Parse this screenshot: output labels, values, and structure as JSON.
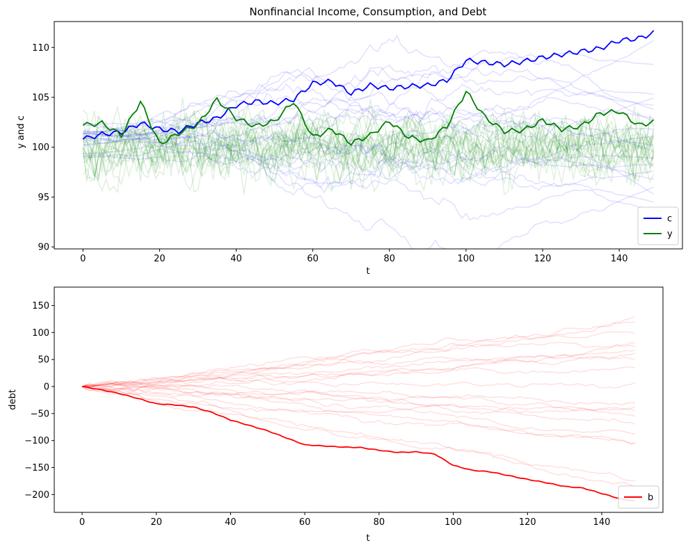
{
  "chart_data": [
    {
      "type": "line",
      "title": "Nonfinancial Income, Consumption, and Debt",
      "xlabel": "t",
      "ylabel": "y and c",
      "xlim": [
        -7.5,
        156.5
      ],
      "ylim": [
        89.8,
        112.6
      ],
      "xticks": [
        0,
        20,
        40,
        60,
        80,
        100,
        120,
        140
      ],
      "yticks": [
        90,
        95,
        100,
        105,
        110
      ],
      "grid": false,
      "legend": {
        "position": "lower-right",
        "entries": [
          {
            "label": "c",
            "color": "#0000ff"
          },
          {
            "label": "y",
            "color": "#008000"
          }
        ]
      },
      "background_paths": {
        "count_per_series": 20,
        "alpha": 0.12,
        "c_final_levels": [
          110.7,
          108.3,
          105.3,
          104.9,
          104.2,
          103.8,
          102.9,
          102.6,
          101.8,
          101.1,
          100.2,
          99.6,
          98.9,
          98.3,
          97.6,
          96.8,
          96.0,
          95.3,
          94.5,
          93.6
        ],
        "y_mean": 100
      },
      "series": [
        {
          "name": "c",
          "color": "#0000ff",
          "x_start": 0,
          "x_step": 5,
          "values": [
            100.8,
            101.3,
            101.5,
            102.4,
            101.8,
            101.6,
            102.4,
            102.9,
            104.2,
            104.6,
            104.4,
            104.8,
            106.4,
            106.6,
            105.4,
            106.2,
            105.9,
            106.1,
            106.2,
            106.7,
            108.7,
            108.5,
            108.3,
            108.6,
            109.0,
            109.3,
            109.6,
            109.9,
            110.7,
            110.9,
            111.6
          ]
        },
        {
          "name": "y",
          "color": "#008000",
          "x_start": 0,
          "x_step": 5,
          "values": [
            102.2,
            102.4,
            101.2,
            104.6,
            100.3,
            101.4,
            102.3,
            104.8,
            102.9,
            102.1,
            102.6,
            104.6,
            101.0,
            101.8,
            100.4,
            101.2,
            102.6,
            101.0,
            100.6,
            102.1,
            105.6,
            103.0,
            101.6,
            101.7,
            102.7,
            101.8,
            102.1,
            103.4,
            103.6,
            102.2,
            102.6
          ]
        }
      ]
    },
    {
      "type": "line",
      "title": "",
      "xlabel": "t",
      "ylabel": "debt",
      "xlim": [
        -7.5,
        156.5
      ],
      "ylim": [
        -233,
        184
      ],
      "xticks": [
        0,
        20,
        40,
        60,
        80,
        100,
        120,
        140
      ],
      "yticks": [
        150,
        100,
        50,
        0,
        -50,
        -100,
        -150,
        -200
      ],
      "grid": false,
      "legend": {
        "position": "lower-right",
        "entries": [
          {
            "label": "b",
            "color": "#ff0000"
          }
        ]
      },
      "background_paths": {
        "count": 20,
        "alpha": 0.12,
        "final_levels": [
          120,
          130,
          98,
          80,
          73,
          67,
          62,
          50,
          35,
          7,
          -30,
          -38,
          -45,
          -55,
          -70,
          -88,
          -105,
          -105,
          -174,
          -185
        ]
      },
      "series": [
        {
          "name": "b",
          "color": "#ff0000",
          "x_start": 0,
          "x_step": 5,
          "values": [
            0,
            -6,
            -13,
            -22,
            -32,
            -34,
            -38,
            -48,
            -62,
            -72,
            -82,
            -95,
            -108,
            -110,
            -112,
            -113,
            -118,
            -122,
            -121,
            -125,
            -146,
            -155,
            -158,
            -165,
            -172,
            -178,
            -185,
            -188,
            -198,
            -208,
            -213
          ]
        }
      ]
    }
  ]
}
